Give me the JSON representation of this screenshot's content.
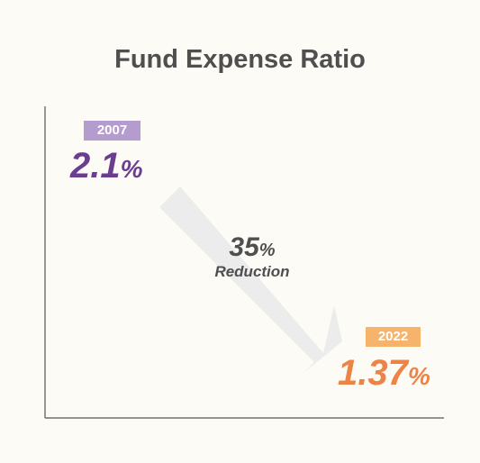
{
  "colors": {
    "background": "#fcfbf5",
    "title": "#4f4f4f",
    "axis": "#555555",
    "arrow": "#ececec",
    "start_badge": "#b59ccf",
    "start_value": "#6b3d8f",
    "end_badge": "#f6b36c",
    "end_value": "#ee8347"
  },
  "chart_data": {
    "type": "comparison",
    "title": "Fund Expense Ratio",
    "unit": "%",
    "points": [
      {
        "year": "2007",
        "value": "2.1",
        "unit": "%"
      },
      {
        "year": "2022",
        "value": "1.37",
        "unit": "%"
      }
    ],
    "change": {
      "value": "35",
      "unit": "%",
      "label": "Reduction"
    },
    "grid": false
  }
}
